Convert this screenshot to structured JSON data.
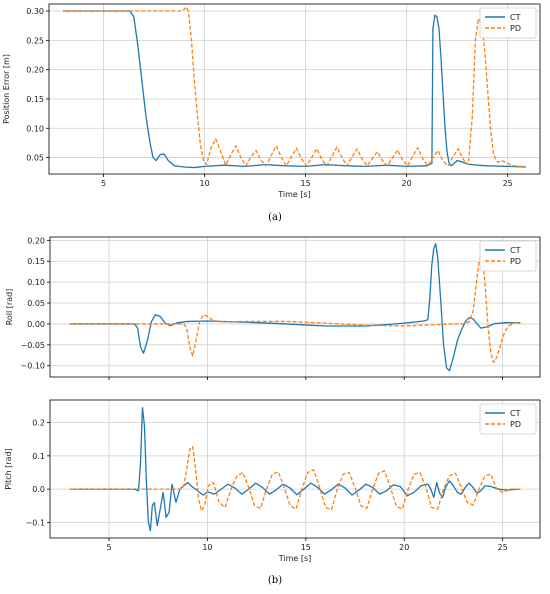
{
  "captions": {
    "a": "(a)",
    "b": "(b)"
  },
  "colors": {
    "CT": "#1f77b4",
    "PD": "#ff7f0e",
    "grid": "#d0d0d0",
    "axes": "#000000"
  },
  "chart_data": [
    {
      "id": "position",
      "type": "line",
      "title": "",
      "xlabel": "Time [s]",
      "ylabel": "Position Error [m]",
      "xlim": [
        2.3,
        26.6
      ],
      "ylim": [
        0.022,
        0.312
      ],
      "xticks": [
        5,
        10,
        15,
        20,
        25
      ],
      "yticks": [
        0.05,
        0.1,
        0.15,
        0.2,
        0.25,
        0.3
      ],
      "ytick_labels": [
        "0.05",
        "0.10",
        "0.15",
        "0.20",
        "0.25",
        "0.30"
      ],
      "grid": true,
      "legend": "top-right",
      "series": [
        {
          "name": "CT",
          "style": "solid",
          "x": [
            3.0,
            6.3,
            6.5,
            6.7,
            6.9,
            7.1,
            7.3,
            7.45,
            7.6,
            7.8,
            8.0,
            8.2,
            8.5,
            9.0,
            9.5,
            10.0,
            11,
            12,
            13,
            14,
            15,
            16,
            17,
            18,
            19,
            20,
            21,
            21.25,
            21.3,
            21.4,
            21.5,
            21.6,
            21.7,
            21.8,
            21.9,
            22.0,
            22.1,
            22.2,
            22.35,
            22.5,
            22.8,
            23.0,
            23.5,
            24.0,
            25.0,
            25.9
          ],
          "y": [
            0.3,
            0.3,
            0.29,
            0.24,
            0.18,
            0.12,
            0.075,
            0.05,
            0.045,
            0.055,
            0.056,
            0.045,
            0.036,
            0.034,
            0.033,
            0.035,
            0.037,
            0.035,
            0.038,
            0.036,
            0.035,
            0.038,
            0.036,
            0.035,
            0.037,
            0.035,
            0.036,
            0.04,
            0.27,
            0.293,
            0.29,
            0.27,
            0.22,
            0.16,
            0.1,
            0.06,
            0.04,
            0.036,
            0.04,
            0.045,
            0.042,
            0.039,
            0.037,
            0.036,
            0.035,
            0.034
          ]
        },
        {
          "name": "PD",
          "style": "dashed",
          "x": [
            3.0,
            8.8,
            9.0,
            9.1,
            9.2,
            9.35,
            9.5,
            9.65,
            9.8,
            9.95,
            10.1,
            10.3,
            10.55,
            10.8,
            11.05,
            11.3,
            11.55,
            11.8,
            12.05,
            12.3,
            12.55,
            12.8,
            13.05,
            13.3,
            13.55,
            13.8,
            14.05,
            14.3,
            14.55,
            14.8,
            15.05,
            15.3,
            15.55,
            15.8,
            16.05,
            16.3,
            16.55,
            16.8,
            17.05,
            17.3,
            17.55,
            17.8,
            18.05,
            18.3,
            18.55,
            18.8,
            19.05,
            19.3,
            19.55,
            19.8,
            20.05,
            20.3,
            20.55,
            20.8,
            21.05,
            21.3,
            21.55,
            21.8,
            22.05,
            22.3,
            22.55,
            22.8,
            23.05,
            23.25,
            23.4,
            23.55,
            23.7,
            23.85,
            24.0,
            24.15,
            24.3,
            24.5,
            24.7,
            25.0,
            25.3,
            25.6,
            25.9
          ],
          "y": [
            0.3,
            0.3,
            0.303,
            0.307,
            0.3,
            0.25,
            0.18,
            0.12,
            0.07,
            0.045,
            0.038,
            0.065,
            0.082,
            0.06,
            0.037,
            0.055,
            0.07,
            0.05,
            0.036,
            0.052,
            0.062,
            0.045,
            0.036,
            0.054,
            0.07,
            0.05,
            0.036,
            0.052,
            0.066,
            0.048,
            0.036,
            0.05,
            0.065,
            0.047,
            0.036,
            0.052,
            0.068,
            0.05,
            0.036,
            0.051,
            0.065,
            0.047,
            0.036,
            0.048,
            0.06,
            0.045,
            0.036,
            0.05,
            0.063,
            0.046,
            0.036,
            0.052,
            0.067,
            0.048,
            0.036,
            0.05,
            0.062,
            0.044,
            0.036,
            0.052,
            0.065,
            0.047,
            0.038,
            0.12,
            0.25,
            0.287,
            0.28,
            0.24,
            0.17,
            0.1,
            0.055,
            0.042,
            0.045,
            0.04,
            0.036,
            0.035,
            0.035
          ]
        }
      ]
    },
    {
      "id": "roll",
      "type": "line",
      "title": "",
      "xlabel": "",
      "ylabel": "Roll [rad]",
      "xlim": [
        2.0,
        26.9
      ],
      "ylim": [
        -0.127,
        0.208
      ],
      "xticks": [
        5,
        10,
        15,
        20,
        25
      ],
      "yticks": [
        -0.1,
        -0.05,
        0.0,
        0.05,
        0.1,
        0.15,
        0.2
      ],
      "ytick_labels": [
        "−0.10",
        "−0.05",
        "0.00",
        "0.05",
        "0.10",
        "0.15",
        "0.20"
      ],
      "grid": true,
      "legend": "top-right",
      "series": [
        {
          "name": "CT",
          "style": "solid",
          "x": [
            3.0,
            6.3,
            6.45,
            6.6,
            6.75,
            6.95,
            7.15,
            7.35,
            7.6,
            7.85,
            8.1,
            8.5,
            9.0,
            10.0,
            12,
            14,
            16,
            18,
            19,
            20,
            21,
            21.2,
            21.3,
            21.4,
            21.5,
            21.6,
            21.7,
            21.85,
            22.0,
            22.15,
            22.3,
            22.5,
            22.7,
            22.9,
            23.1,
            23.3,
            23.5,
            23.7,
            23.9,
            24.2,
            24.6,
            25.2,
            25.9
          ],
          "y": [
            0.0,
            0.0,
            -0.01,
            -0.055,
            -0.07,
            -0.04,
            0.005,
            0.022,
            0.018,
            0.002,
            -0.004,
            0.003,
            0.006,
            0.007,
            0.004,
            0.0,
            -0.005,
            -0.005,
            -0.002,
            0.002,
            0.007,
            0.01,
            0.06,
            0.14,
            0.18,
            0.192,
            0.16,
            0.06,
            -0.05,
            -0.105,
            -0.112,
            -0.08,
            -0.04,
            -0.015,
            0.005,
            0.015,
            0.012,
            0.0,
            -0.01,
            -0.007,
            0.001,
            0.003,
            0.003
          ]
        },
        {
          "name": "PD",
          "style": "dashed",
          "x": [
            3.0,
            8.8,
            8.95,
            9.1,
            9.25,
            9.4,
            9.6,
            9.8,
            10.0,
            10.3,
            10.8,
            12,
            14,
            16,
            18,
            19,
            20,
            21,
            22,
            22.7,
            23.0,
            23.3,
            23.5,
            23.65,
            23.8,
            23.9,
            24.0,
            24.1,
            24.25,
            24.4,
            24.55,
            24.7,
            24.9,
            25.1,
            25.3,
            25.6,
            25.9
          ],
          "y": [
            0.0,
            0.0,
            -0.01,
            -0.055,
            -0.077,
            -0.045,
            0.005,
            0.022,
            0.018,
            0.008,
            0.005,
            0.006,
            0.006,
            0.002,
            -0.003,
            -0.004,
            -0.005,
            -0.003,
            -0.001,
            0.0,
            0.0,
            0.005,
            0.03,
            0.09,
            0.15,
            0.161,
            0.15,
            0.1,
            0.0,
            -0.07,
            -0.092,
            -0.08,
            -0.05,
            -0.02,
            -0.005,
            0.003,
            0.003
          ]
        }
      ]
    },
    {
      "id": "pitch",
      "type": "line",
      "title": "",
      "xlabel": "Time [s]",
      "ylabel": "Pitch [rad]",
      "xlim": [
        2.0,
        26.9
      ],
      "ylim": [
        -0.147,
        0.268
      ],
      "xticks": [
        5,
        10,
        15,
        20,
        25
      ],
      "yticks": [
        -0.1,
        0.0,
        0.1,
        0.2
      ],
      "ytick_labels": [
        "−0.1",
        "0.0",
        "0.1",
        "0.2"
      ],
      "grid": true,
      "legend": "top-right",
      "series": [
        {
          "name": "CT",
          "style": "solid",
          "x": [
            3.0,
            6.3,
            6.5,
            6.6,
            6.7,
            6.8,
            6.9,
            7.0,
            7.1,
            7.2,
            7.3,
            7.45,
            7.6,
            7.75,
            7.9,
            8.05,
            8.2,
            8.4,
            8.6,
            8.8,
            9.0,
            9.2,
            9.4,
            9.6,
            9.8,
            10.0,
            10.35,
            10.7,
            11.05,
            11.4,
            11.75,
            12.1,
            12.45,
            12.8,
            13.15,
            13.5,
            13.85,
            14.2,
            14.55,
            14.9,
            15.25,
            15.6,
            15.95,
            16.3,
            16.65,
            17.0,
            17.35,
            17.7,
            18.05,
            18.4,
            18.75,
            19.1,
            19.45,
            19.8,
            20.15,
            20.5,
            20.85,
            21.2,
            21.35,
            21.5,
            21.65,
            21.8,
            21.95,
            22.1,
            22.3,
            22.5,
            22.7,
            22.9,
            23.1,
            23.3,
            23.5,
            23.7,
            23.9,
            24.1,
            24.4,
            24.8,
            25.2,
            25.9
          ],
          "y": [
            0.0,
            0.0,
            -0.005,
            0.08,
            0.245,
            0.19,
            0.02,
            -0.1,
            -0.125,
            -0.05,
            -0.04,
            -0.11,
            -0.06,
            -0.01,
            -0.085,
            -0.07,
            0.015,
            -0.04,
            0.0,
            0.01,
            0.02,
            0.008,
            0.0,
            -0.01,
            -0.018,
            -0.008,
            -0.015,
            0.0,
            0.015,
            0.003,
            -0.015,
            0.0,
            0.018,
            0.005,
            -0.015,
            -0.002,
            0.015,
            0.003,
            -0.017,
            0.0,
            0.018,
            0.005,
            -0.015,
            -0.002,
            0.015,
            0.003,
            -0.018,
            -0.003,
            0.015,
            0.005,
            -0.015,
            -0.005,
            0.013,
            0.008,
            -0.02,
            -0.01,
            0.01,
            0.015,
            0.0,
            -0.025,
            0.02,
            -0.012,
            -0.025,
            0.005,
            0.025,
            0.01,
            -0.01,
            -0.015,
            0.005,
            0.018,
            0.005,
            -0.012,
            -0.005,
            0.01,
            0.008,
            0.0,
            -0.003,
            0.0
          ]
        },
        {
          "name": "PD",
          "style": "dashed",
          "x": [
            3.0,
            8.6,
            8.8,
            8.95,
            9.1,
            9.25,
            9.4,
            9.55,
            9.7,
            9.85,
            10.05,
            10.3,
            10.6,
            10.9,
            11.2,
            11.5,
            11.8,
            12.1,
            12.4,
            12.7,
            13.0,
            13.3,
            13.6,
            13.9,
            14.2,
            14.5,
            14.8,
            15.1,
            15.4,
            15.7,
            16.0,
            16.3,
            16.6,
            16.9,
            17.2,
            17.5,
            17.8,
            18.1,
            18.4,
            18.7,
            19.0,
            19.3,
            19.6,
            19.9,
            20.2,
            20.5,
            20.8,
            21.1,
            21.4,
            21.7,
            22.0,
            22.3,
            22.6,
            22.9,
            23.2,
            23.5,
            23.8,
            24.1,
            24.4,
            24.7,
            25.0,
            25.4,
            25.9
          ],
          "y": [
            0.0,
            0.0,
            0.01,
            0.06,
            0.12,
            0.128,
            0.06,
            -0.03,
            -0.065,
            -0.05,
            0.01,
            0.02,
            -0.04,
            -0.055,
            0.0,
            0.04,
            0.05,
            0.005,
            -0.05,
            -0.058,
            0.0,
            0.045,
            0.052,
            0.005,
            -0.05,
            -0.06,
            0.0,
            0.05,
            0.058,
            0.005,
            -0.055,
            -0.062,
            0.0,
            0.045,
            0.05,
            0.005,
            -0.05,
            -0.058,
            0.0,
            0.048,
            0.055,
            0.005,
            -0.052,
            -0.06,
            0.0,
            0.045,
            0.05,
            0.005,
            -0.055,
            -0.06,
            0.0,
            0.04,
            0.048,
            0.005,
            -0.04,
            -0.048,
            0.0,
            0.04,
            0.045,
            0.0,
            -0.01,
            0.0,
            0.0
          ]
        }
      ]
    }
  ]
}
